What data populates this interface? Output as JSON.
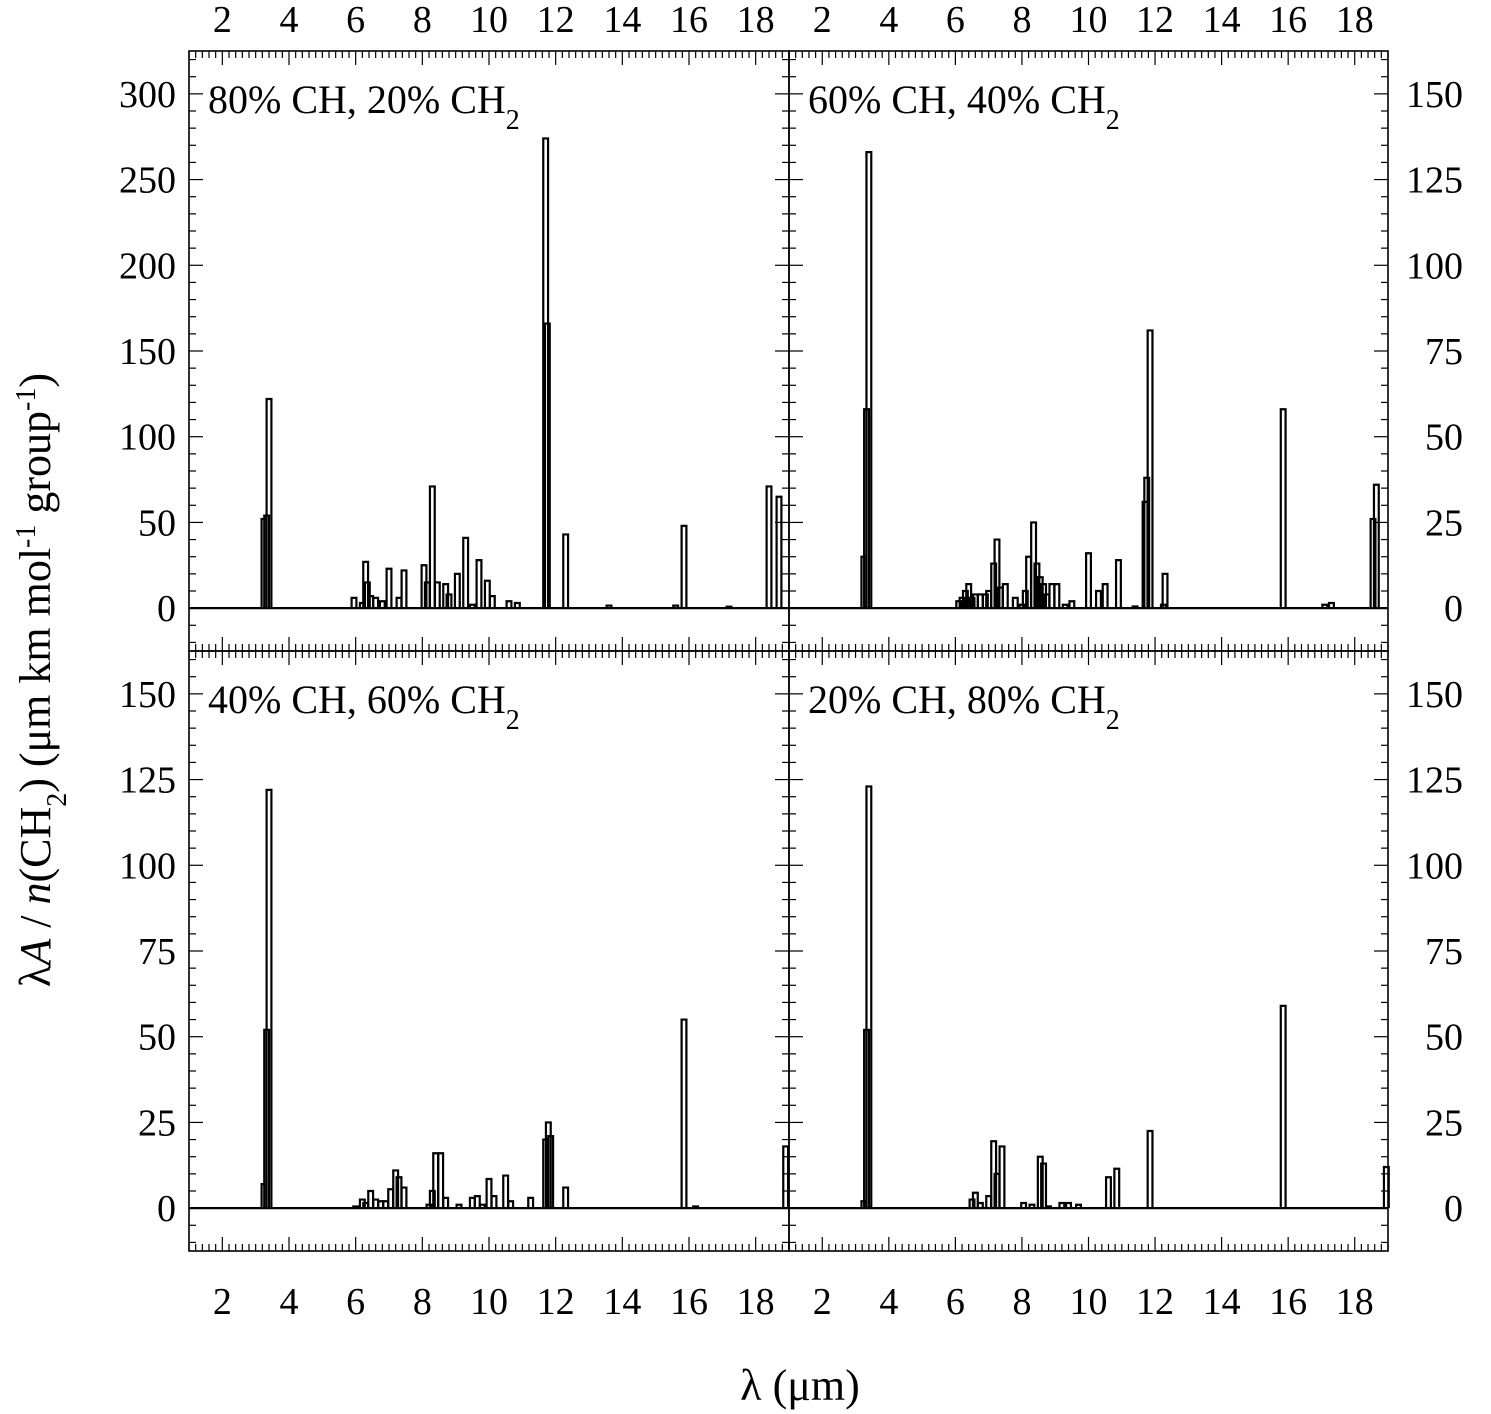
{
  "chart_data": {
    "type": "line",
    "xlabel": "λ (μm)",
    "ylabel_parts": {
      "a": "λ",
      "b": "A",
      "c": " / ",
      "d": "n",
      "e": "(CH",
      "f": "2",
      "g": ") (μm km mol",
      "h": "-1",
      "i": " group",
      "j": "-1",
      "k": ")"
    },
    "x_ticks": [
      "2",
      "4",
      "6",
      "8",
      "10",
      "12",
      "14",
      "16",
      "18"
    ],
    "panels": [
      {
        "title": {
          "a": "80% CH, 20% CH",
          "b": "2"
        },
        "y_ticks": [
          "0",
          "50",
          "100",
          "150",
          "200",
          "250",
          "300"
        ],
        "ylim": [
          -25,
          325
        ],
        "xlim": [
          1,
          19
        ],
        "baseline": [
          [
            1,
            0
          ],
          [
            19,
            0
          ]
        ],
        "peaks": [
          [
            3.25,
            52
          ],
          [
            3.33,
            54
          ],
          [
            3.4,
            122
          ],
          [
            5.95,
            6
          ],
          [
            6.2,
            3
          ],
          [
            6.3,
            27
          ],
          [
            6.35,
            15
          ],
          [
            6.45,
            7
          ],
          [
            6.6,
            6
          ],
          [
            6.8,
            4
          ],
          [
            7.0,
            23
          ],
          [
            7.3,
            6
          ],
          [
            7.45,
            22
          ],
          [
            8.05,
            25
          ],
          [
            8.15,
            15
          ],
          [
            8.3,
            71
          ],
          [
            8.45,
            15
          ],
          [
            8.7,
            14
          ],
          [
            8.8,
            8
          ],
          [
            9.05,
            20
          ],
          [
            9.3,
            41
          ],
          [
            9.5,
            2
          ],
          [
            9.7,
            28
          ],
          [
            9.95,
            16
          ],
          [
            10.1,
            7
          ],
          [
            10.6,
            4
          ],
          [
            10.85,
            3
          ],
          [
            11.7,
            274
          ],
          [
            11.75,
            166
          ],
          [
            12.3,
            43
          ],
          [
            13.6,
            1.5
          ],
          [
            15.6,
            1.5
          ],
          [
            15.85,
            48
          ],
          [
            17.2,
            0.8
          ],
          [
            18.4,
            71
          ],
          [
            18.7,
            65
          ]
        ]
      },
      {
        "title": {
          "a": "60% CH, 40% CH",
          "b": "2"
        },
        "y_ticks": [
          "0",
          "25",
          "50",
          "75",
          "100",
          "125",
          "150"
        ],
        "ylim": [
          -12.5,
          162.5
        ],
        "xlim": [
          1,
          19
        ],
        "baseline": [
          [
            1,
            0
          ],
          [
            19,
            0
          ]
        ],
        "peaks": [
          [
            3.25,
            15
          ],
          [
            3.33,
            58
          ],
          [
            3.4,
            133
          ],
          [
            6.1,
            2
          ],
          [
            6.2,
            3
          ],
          [
            6.3,
            5
          ],
          [
            6.4,
            7
          ],
          [
            6.5,
            3
          ],
          [
            6.6,
            4
          ],
          [
            6.75,
            4
          ],
          [
            6.9,
            4
          ],
          [
            7.0,
            5
          ],
          [
            7.15,
            13
          ],
          [
            7.25,
            20
          ],
          [
            7.35,
            6
          ],
          [
            7.5,
            7
          ],
          [
            7.8,
            3
          ],
          [
            8.0,
            1
          ],
          [
            8.1,
            5
          ],
          [
            8.2,
            15
          ],
          [
            8.35,
            25
          ],
          [
            8.45,
            13
          ],
          [
            8.55,
            9
          ],
          [
            8.65,
            7
          ],
          [
            8.75,
            4
          ],
          [
            8.9,
            7
          ],
          [
            9.05,
            7
          ],
          [
            9.3,
            1
          ],
          [
            9.5,
            2
          ],
          [
            10.0,
            16
          ],
          [
            10.3,
            5
          ],
          [
            10.5,
            7
          ],
          [
            10.9,
            14
          ],
          [
            11.4,
            0.5
          ],
          [
            11.7,
            31
          ],
          [
            11.75,
            38
          ],
          [
            11.85,
            81
          ],
          [
            12.25,
            1
          ],
          [
            12.3,
            10
          ],
          [
            15.85,
            58
          ],
          [
            17.1,
            1
          ],
          [
            17.3,
            1.5
          ],
          [
            18.55,
            26
          ],
          [
            18.65,
            36
          ]
        ]
      },
      {
        "title": {
          "a": "40% CH, 60% CH",
          "b": "2"
        },
        "y_ticks": [
          "0",
          "25",
          "50",
          "75",
          "100",
          "125",
          "150"
        ],
        "ylim": [
          -12.5,
          162.5
        ],
        "xlim": [
          1,
          19
        ],
        "baseline": [
          [
            1,
            0
          ],
          [
            19,
            0
          ]
        ],
        "peaks": [
          [
            3.25,
            7
          ],
          [
            3.33,
            52
          ],
          [
            3.4,
            122
          ],
          [
            6.0,
            0.5
          ],
          [
            6.2,
            2.5
          ],
          [
            6.3,
            1.5
          ],
          [
            6.45,
            5
          ],
          [
            6.6,
            2.5
          ],
          [
            6.75,
            2
          ],
          [
            6.9,
            2
          ],
          [
            7.05,
            5.5
          ],
          [
            7.2,
            11
          ],
          [
            7.3,
            9
          ],
          [
            7.45,
            6
          ],
          [
            8.2,
            1
          ],
          [
            8.3,
            5
          ],
          [
            8.4,
            16
          ],
          [
            8.55,
            16
          ],
          [
            8.7,
            3
          ],
          [
            9.1,
            1
          ],
          [
            9.5,
            3
          ],
          [
            9.65,
            3.5
          ],
          [
            9.8,
            1
          ],
          [
            10.0,
            8.5
          ],
          [
            10.15,
            3.5
          ],
          [
            10.5,
            9.5
          ],
          [
            10.65,
            2
          ],
          [
            11.25,
            3
          ],
          [
            11.7,
            20
          ],
          [
            11.78,
            25
          ],
          [
            11.85,
            21
          ],
          [
            12.3,
            6
          ],
          [
            15.85,
            55
          ],
          [
            16.2,
            0.5
          ],
          [
            18.9,
            18
          ]
        ]
      },
      {
        "title": {
          "a": "20% CH, 80% CH",
          "b": "2"
        },
        "y_ticks": [
          "0",
          "25",
          "50",
          "75",
          "100",
          "125",
          "150"
        ],
        "ylim": [
          -12.5,
          162.5
        ],
        "xlim": [
          1,
          19
        ],
        "baseline": [
          [
            1,
            0
          ],
          [
            19,
            0
          ]
        ],
        "peaks": [
          [
            3.25,
            2
          ],
          [
            3.33,
            52
          ],
          [
            3.4,
            123
          ],
          [
            6.5,
            2.5
          ],
          [
            6.6,
            4.5
          ],
          [
            6.75,
            1.5
          ],
          [
            7.0,
            3.5
          ],
          [
            7.15,
            19.5
          ],
          [
            7.25,
            10
          ],
          [
            7.4,
            18
          ],
          [
            8.05,
            1.5
          ],
          [
            8.3,
            1
          ],
          [
            8.55,
            15
          ],
          [
            8.65,
            13
          ],
          [
            8.8,
            0.5
          ],
          [
            9.2,
            1.5
          ],
          [
            9.4,
            1.5
          ],
          [
            9.7,
            1
          ],
          [
            10.6,
            9
          ],
          [
            10.85,
            11.5
          ],
          [
            11.85,
            22.5
          ],
          [
            15.85,
            59
          ],
          [
            18.95,
            12
          ]
        ]
      }
    ]
  }
}
